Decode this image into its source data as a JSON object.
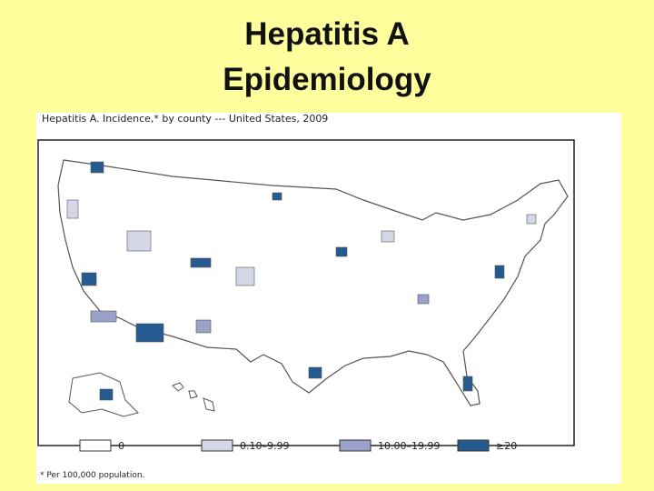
{
  "slide": {
    "title": [
      "Hepatitis A",
      "Epidemiology"
    ]
  },
  "map": {
    "title": "Hepatitis A. Incidence,* by county --- United States, 2009",
    "legend": [
      {
        "label": "0",
        "color": "#ffffff"
      },
      {
        "label": "0.10–9.99",
        "color": "#d4d7e8"
      },
      {
        "label": "10.00–19.99",
        "color": "#9aa2ca"
      },
      {
        "label": "≥20",
        "color": "#245a8e"
      }
    ],
    "footnote": "* Per 100,000 population."
  }
}
